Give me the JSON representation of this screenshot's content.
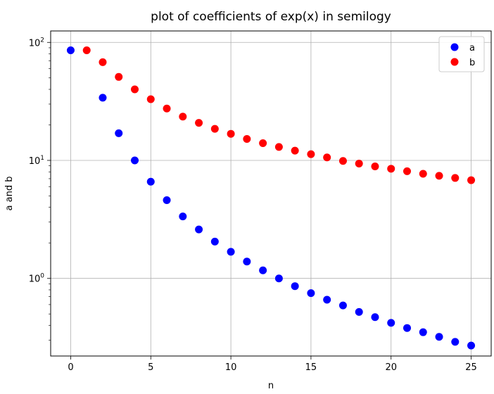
{
  "chart_data": {
    "type": "scatter",
    "title": "plot of coefficients of exp(x) in semilogy",
    "xlabel": "n",
    "ylabel": "a and b",
    "x_scale": "linear",
    "y_scale": "log",
    "xlim": [
      -1.25,
      26.25
    ],
    "ylim": [
      0.22,
      125
    ],
    "x_ticks": [
      0,
      5,
      10,
      15,
      20,
      25
    ],
    "x_tick_labels": [
      "0",
      "5",
      "10",
      "15",
      "20",
      "25"
    ],
    "y_ticks": [
      1,
      10,
      100
    ],
    "y_tick_labels": [
      {
        "base": "10",
        "exp": "0"
      },
      {
        "base": "10",
        "exp": "1"
      },
      {
        "base": "10",
        "exp": "2"
      }
    ],
    "grid": true,
    "legend_position": "top-right",
    "series": [
      {
        "name": "a",
        "color": "#0000ff",
        "x": [
          0,
          2,
          3,
          4,
          5,
          6,
          7,
          8,
          9,
          10,
          11,
          12,
          13,
          14,
          15,
          16,
          17,
          18,
          19,
          20,
          21,
          22,
          23,
          24,
          25
        ],
        "y": [
          85.7,
          34,
          17,
          10,
          6.6,
          4.6,
          3.35,
          2.6,
          2.05,
          1.68,
          1.39,
          1.17,
          1.0,
          0.86,
          0.75,
          0.66,
          0.59,
          0.52,
          0.47,
          0.42,
          0.38,
          0.35,
          0.32,
          0.29,
          0.27
        ]
      },
      {
        "name": "b",
        "color": "#ff0000",
        "x": [
          1,
          2,
          3,
          4,
          5,
          6,
          7,
          8,
          9,
          10,
          11,
          12,
          13,
          14,
          15,
          16,
          17,
          18,
          19,
          20,
          21,
          22,
          23,
          24,
          25
        ],
        "y": [
          85.7,
          68,
          51,
          40,
          33,
          27.5,
          23.5,
          20.8,
          18.5,
          16.8,
          15.2,
          14.0,
          13.0,
          12.1,
          11.3,
          10.6,
          9.9,
          9.4,
          8.9,
          8.5,
          8.1,
          7.7,
          7.4,
          7.1,
          6.8
        ]
      }
    ]
  }
}
